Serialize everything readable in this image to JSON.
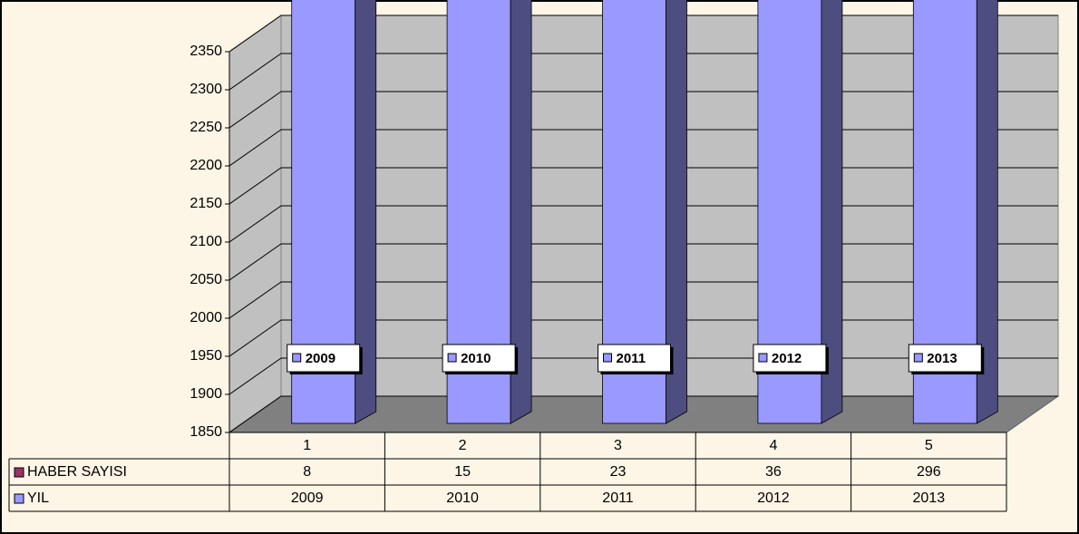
{
  "chart_data": {
    "type": "bar3d_stacked",
    "categories": [
      "1",
      "2",
      "3",
      "4",
      "5"
    ],
    "series": [
      {
        "name": "YIL",
        "color": "#9999ff",
        "values": [
          2009,
          2010,
          2011,
          2012,
          2013
        ]
      },
      {
        "name": "HABER SAYISI",
        "color": "#993366",
        "values": [
          8,
          15,
          23,
          36,
          296
        ]
      }
    ],
    "ylim": [
      1850,
      2350
    ],
    "yticks": [
      1850,
      1900,
      1950,
      2000,
      2050,
      2100,
      2150,
      2200,
      2250,
      2300,
      2350
    ],
    "grid": true
  }
}
